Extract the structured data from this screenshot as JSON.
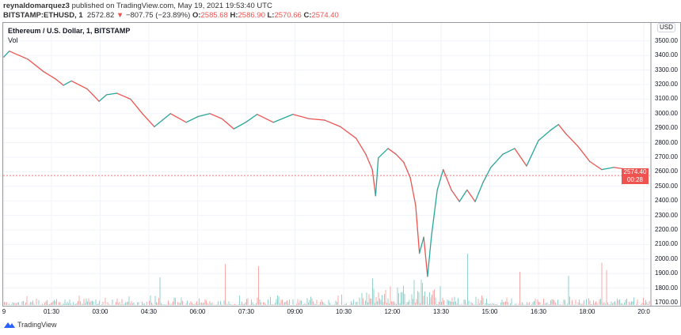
{
  "header": {
    "author": "reynaldomarquez3",
    "published": "published on TradingView.com, May 19, 2021 19:53:40 UTC",
    "symbol": "BITSTAMP:ETHUSD, 1",
    "last": "2572.82",
    "change": "−807.75 (−23.89%)",
    "o_label": "O:",
    "o": "2585.68",
    "h_label": "H:",
    "h": "2586.90",
    "l_label": "L:",
    "l": "2570.66",
    "c_label": "C:",
    "c": "2574.40"
  },
  "legend": {
    "title": "Ethereum / U.S. Dollar, 1, BITSTAMP",
    "indicator": "Vol"
  },
  "currency": "USD",
  "current_price": {
    "value": "2574.40",
    "countdown": "00:28"
  },
  "brand": "TradingView",
  "colors": {
    "up": "#26a69a",
    "down": "#ef5350",
    "grid": "#f0f3fa"
  },
  "chart_data": {
    "type": "line",
    "ylim": [
      1700,
      3600
    ],
    "y_ticks": [
      "3500.00",
      "3400.00",
      "3300.00",
      "3200.00",
      "3100.00",
      "3000.00",
      "2900.00",
      "2800.00",
      "2700.00",
      "2600.00",
      "2500.00",
      "2400.00",
      "2300.00",
      "2200.00",
      "2100.00",
      "2000.00",
      "1900.00",
      "1800.00",
      "1700.00"
    ],
    "x_ticks": [
      "9",
      "01:30",
      "03:00",
      "04:30",
      "06:00",
      "07:30",
      "09:00",
      "10:30",
      "12:00",
      "13:30",
      "15:00",
      "16:30",
      "18:00",
      "20:0"
    ],
    "time": [
      "00:02",
      "00:12",
      "00:46",
      "01:15",
      "01:37",
      "01:52",
      "02:07",
      "02:36",
      "02:58",
      "03:12",
      "03:31",
      "03:56",
      "04:18",
      "04:40",
      "04:55",
      "05:10",
      "05:39",
      "06:01",
      "06:23",
      "06:45",
      "07:07",
      "07:29",
      "07:50",
      "08:20",
      "08:56",
      "09:26",
      "09:55",
      "10:24",
      "10:53",
      "11:11",
      "11:23",
      "11:29",
      "11:34",
      "11:52",
      "12:07",
      "12:21",
      "12:33",
      "12:43",
      "12:50",
      "12:58",
      "13:05",
      "13:12",
      "13:23",
      "13:34",
      "13:49",
      "14:04",
      "14:18",
      "14:33",
      "14:48",
      "15:02",
      "15:24",
      "15:46",
      "16:08",
      "16:30",
      "16:52",
      "17:07",
      "17:21",
      "17:43",
      "18:05",
      "18:27",
      "18:49",
      "19:18",
      "19:43"
    ],
    "price": [
      3390,
      3430,
      3375,
      3290,
      3240,
      3195,
      3225,
      3170,
      3085,
      3130,
      3140,
      3100,
      3000,
      2910,
      2955,
      3000,
      2940,
      2980,
      3000,
      2965,
      2895,
      2940,
      2995,
      2940,
      2995,
      2965,
      2955,
      2910,
      2830,
      2720,
      2615,
      2435,
      2695,
      2760,
      2720,
      2665,
      2560,
      2370,
      2040,
      2150,
      1880,
      2150,
      2475,
      2615,
      2475,
      2395,
      2475,
      2395,
      2530,
      2630,
      2720,
      2760,
      2640,
      2815,
      2885,
      2925,
      2860,
      2775,
      2670,
      2615,
      2630,
      2615,
      2585
    ]
  }
}
